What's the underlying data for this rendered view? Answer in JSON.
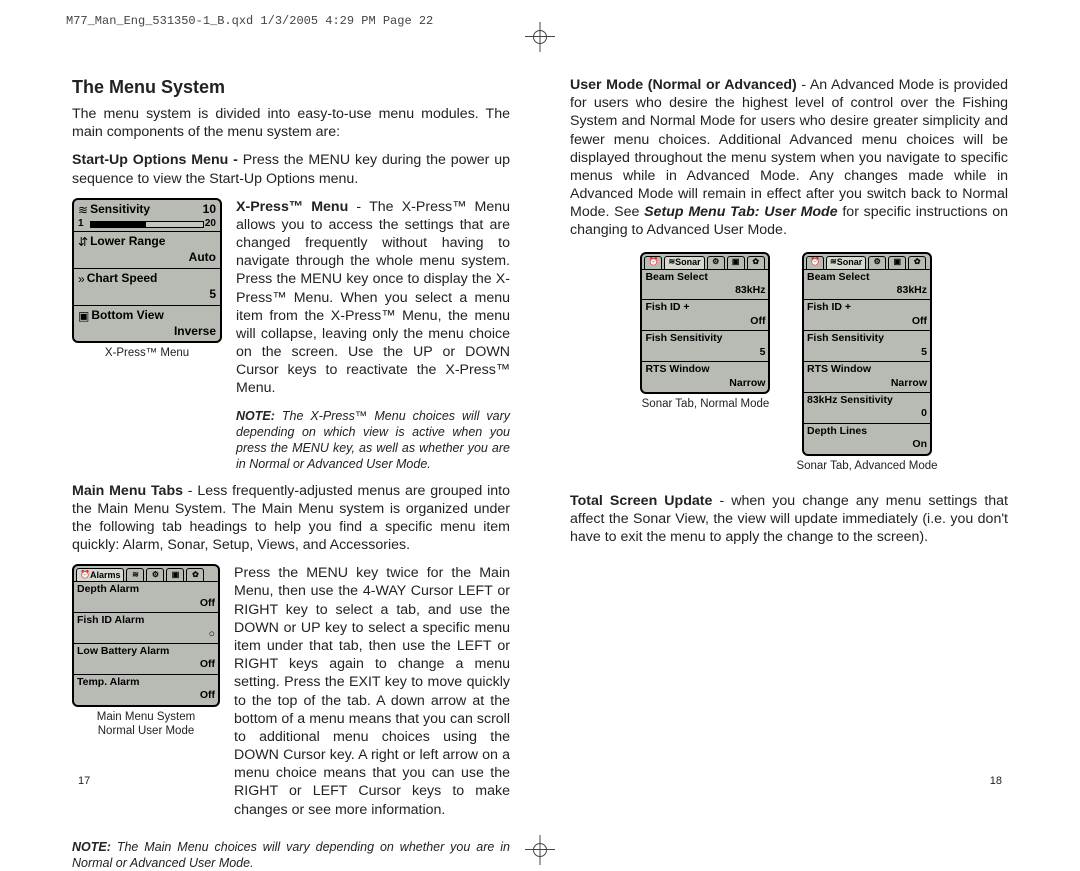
{
  "header_line": "M77_Man_Eng_531350-1_B.qxd  1/3/2005  4:29 PM  Page 22",
  "page_left_num": "17",
  "page_right_num": "18",
  "left": {
    "title": "The Menu System",
    "intro": "The menu system is divided into easy-to-use menu modules. The main components of the menu system are:",
    "startup": {
      "bold": "Start-Up Options Menu - ",
      "text": "Press the MENU key during the power up sequence to view the Start-Up Options menu."
    },
    "xpress_para": {
      "bold": "X-Press™ Menu",
      "text": " - The X-Press™ Menu allows you to access the settings that are changed frequently without having to navigate through the whole menu system. Press the MENU key once to display the X-Press™ Menu. When you select a menu item from the X-Press™ Menu, the menu will collapse, leaving only the menu choice on the screen. Use the UP or DOWN Cursor keys to reactivate the X-Press™ Menu."
    },
    "xpress_caption": "X-Press™ Menu",
    "xpress_note": {
      "bold": "NOTE:",
      "text": " The X-Press™ Menu choices will vary depending on which view is active when you press the MENU key, as well as whether you are in Normal or Advanced User Mode."
    },
    "mainmenutabs": {
      "bold": "Main Menu Tabs",
      "text": " - Less frequently-adjusted menus are grouped into the Main Menu System. The Main Menu system is organized under the following tab headings to help you find a specific menu item quickly: Alarm, Sonar, Setup, Views, and Accessories."
    },
    "mainmenu_caption_l1": "Main Menu System",
    "mainmenu_caption_l2": "Normal User Mode",
    "mainmenu_para": "Press the MENU key twice for the Main Menu, then use the 4-WAY Cursor LEFT or RIGHT key to select a tab, and use the DOWN or UP key to select a specific menu item under that tab, then use the LEFT or RIGHT keys again to change a menu setting. Press the EXIT key to move quickly to the top of the tab. A down arrow at the bottom of a menu means that you can scroll to additional menu choices using the DOWN Cursor key. A right or left arrow on a menu choice means that you can use the RIGHT or LEFT Cursor keys to make changes or see more information.",
    "mainmenu_note": {
      "bold": "NOTE:",
      "text": " The Main Menu choices will vary depending on whether you are in Normal or Advanced User Mode."
    },
    "xpress_lcd": {
      "items": [
        {
          "icon": "≋",
          "label": "Sensitivity",
          "topval": "10",
          "slider_min": "1",
          "slider_max": "20",
          "slider_fill_pct": 50
        },
        {
          "icon": "⇵",
          "label": "Lower Range",
          "val": "Auto"
        },
        {
          "icon": "»",
          "label": "Chart Speed",
          "val": "5"
        },
        {
          "icon": "▣",
          "label": "Bottom View",
          "val": "Inverse"
        }
      ]
    },
    "alarms_lcd": {
      "tab_active": "Alarms",
      "items": [
        {
          "label": "Depth Alarm",
          "val": "Off"
        },
        {
          "label": "Fish ID Alarm",
          "val": "○"
        },
        {
          "label": "Low Battery Alarm",
          "val": "Off"
        },
        {
          "label": "Temp. Alarm",
          "val": "Off"
        }
      ]
    }
  },
  "right": {
    "usermode": {
      "bold": "User Mode (Normal or Advanced)",
      "text": " - An Advanced Mode is provided for users who desire the highest level of control over the Fishing System and Normal Mode for users who desire greater simplicity and fewer menu choices. Additional Advanced menu choices will be displayed throughout the menu system when you navigate to specific menus while in Advanced Mode. Any changes made while in Advanced Mode will remain in effect after you switch back to Normal Mode. See ",
      "bold2": "Setup Menu Tab: User Mode",
      "text2": " for specific instructions on changing to Advanced User Mode."
    },
    "sonar_normal_caption": "Sonar Tab, Normal Mode",
    "sonar_adv_caption": "Sonar Tab, Advanced Mode",
    "sonar_lcd_normal": {
      "tab_active": "Sonar",
      "items": [
        {
          "label": "Beam Select",
          "val": "83kHz"
        },
        {
          "label": "Fish ID +",
          "val": "Off"
        },
        {
          "label": "Fish Sensitivity",
          "val": "5"
        },
        {
          "label": "RTS Window",
          "val": "Narrow"
        }
      ]
    },
    "sonar_lcd_adv": {
      "tab_active": "Sonar",
      "items": [
        {
          "label": "Beam Select",
          "val": "83kHz"
        },
        {
          "label": "Fish ID +",
          "val": "Off"
        },
        {
          "label": "Fish Sensitivity",
          "val": "5"
        },
        {
          "label": "RTS Window",
          "val": "Narrow"
        },
        {
          "label": "83kHz Sensitivity",
          "val": "0"
        },
        {
          "label": "Depth Lines",
          "val": "On"
        }
      ]
    },
    "tsu": {
      "bold": "Total Screen Update",
      "text": " - when you change any menu settings that affect the Sonar View, the view will update immediately (i.e. you don't have to exit the menu to apply the change to the screen)."
    }
  }
}
